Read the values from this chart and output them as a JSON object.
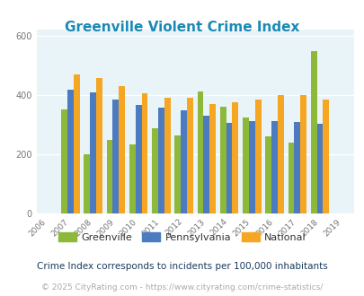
{
  "title": "Greenville Violent Crime Index",
  "years": [
    2006,
    2007,
    2008,
    2009,
    2010,
    2011,
    2012,
    2013,
    2014,
    2015,
    2016,
    2017,
    2018,
    2019
  ],
  "greenville": [
    null,
    350,
    200,
    248,
    233,
    288,
    263,
    410,
    360,
    322,
    260,
    237,
    548,
    null
  ],
  "pennsylvania": [
    null,
    418,
    408,
    383,
    365,
    355,
    347,
    328,
    305,
    310,
    312,
    308,
    303,
    null
  ],
  "national": [
    null,
    467,
    455,
    428,
    405,
    389,
    390,
    368,
    376,
    383,
    400,
    398,
    383,
    null
  ],
  "ylim": [
    0,
    620
  ],
  "yticks": [
    0,
    200,
    400,
    600
  ],
  "bar_width": 0.27,
  "greenville_color": "#8db83a",
  "pennsylvania_color": "#4c7bbf",
  "national_color": "#f5a623",
  "bg_color": "#e8f4f8",
  "title_color": "#1a8ab5",
  "legend_labels": [
    "Greenville",
    "Pennsylvania",
    "National"
  ],
  "footnote1": "Crime Index corresponds to incidents per 100,000 inhabitants",
  "footnote2": "© 2025 CityRating.com - https://www.cityrating.com/crime-statistics/",
  "footnote1_color": "#1a3a5c",
  "footnote2_color": "#aaaaaa",
  "footnote2_url_color": "#4488cc"
}
